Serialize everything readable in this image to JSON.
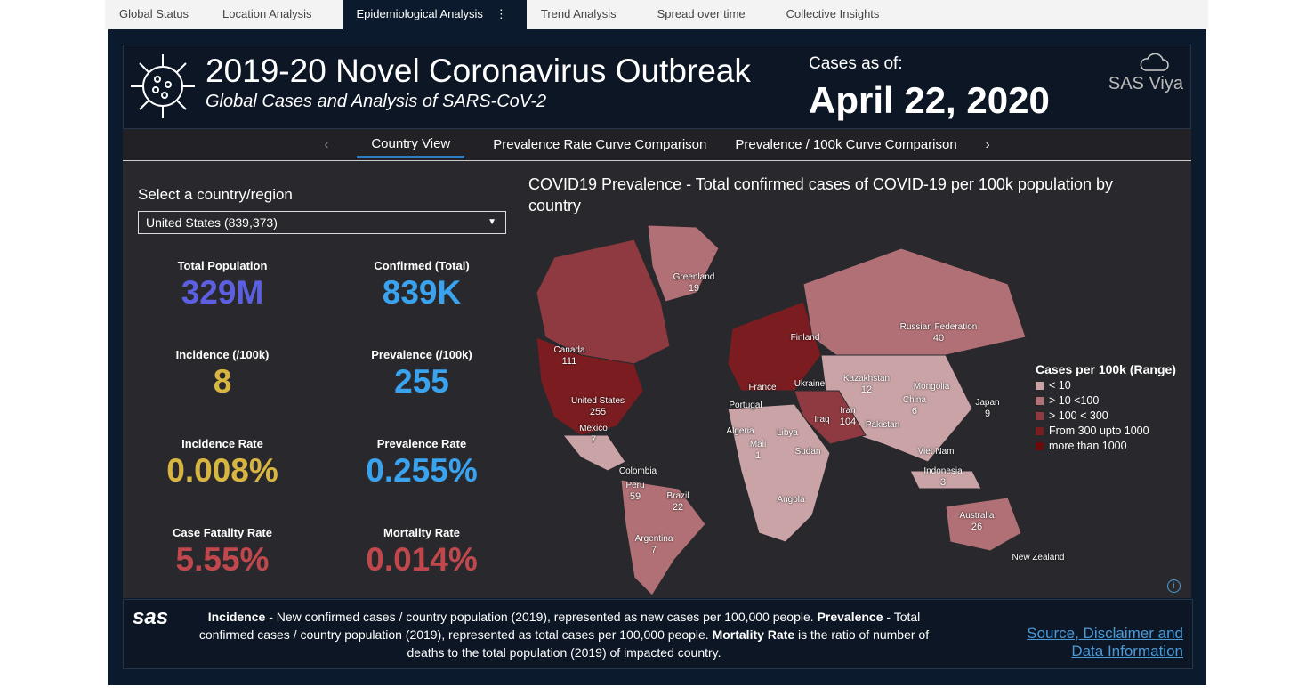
{
  "tabs": [
    "Global Status",
    "Location Analysis",
    "Epidemiological Analysis",
    "Trend Analysis",
    "Spread over time",
    "Collective Insights"
  ],
  "header": {
    "title": "2019-20 Novel Coronavirus Outbreak",
    "subtitle": "Global Cases and Analysis of SARS-CoV-2",
    "cases_as_of": "Cases as of:",
    "date": "April 22, 2020",
    "brand": "SAS Viya"
  },
  "subnav": {
    "prev": "‹",
    "items": [
      "Country View",
      "Prevalence Rate Curve Comparison",
      "Prevalence / 100k Curve Comparison"
    ],
    "next": "›"
  },
  "selector": {
    "label": "Select a country/region",
    "value": "United States (839,373)"
  },
  "kpis": [
    {
      "label": "Total Population",
      "value": "329M",
      "color": "#5b5fe0"
    },
    {
      "label": "Confirmed (Total)",
      "value": "839K",
      "color": "#3aa3f0"
    },
    {
      "label": "Incidence  (/100k)",
      "value": "8",
      "color": "#d8b540"
    },
    {
      "label": "Prevalence  (/100k)",
      "value": "255",
      "color": "#3aa3f0"
    },
    {
      "label": "Incidence Rate",
      "value": "0.008%",
      "color": "#d8b540"
    },
    {
      "label": "Prevalence Rate",
      "value": "0.255%",
      "color": "#3aa3f0"
    },
    {
      "label": "Case Fatality Rate",
      "value": "5.55%",
      "color": "#c0484d"
    },
    {
      "label": "Mortality Rate",
      "value": "0.014%",
      "color": "#c0484d"
    }
  ],
  "map": {
    "title": "COVID19 Prevalence  - Total confirmed cases of COVID-19 per 100k population by country",
    "labels": [
      [
        "Greenland",
        "19"
      ],
      [
        "Canada",
        "111"
      ],
      [
        "United States",
        "255"
      ],
      [
        "Mexico",
        "7"
      ],
      [
        "Finland",
        ""
      ],
      [
        "France",
        ""
      ],
      [
        "Ukraine",
        ""
      ],
      [
        "Portugal",
        ""
      ],
      [
        "Kazakhstan",
        "12"
      ],
      [
        "Russian Federation",
        "40"
      ],
      [
        "Mongolia",
        ""
      ],
      [
        "China",
        "6"
      ],
      [
        "Japan",
        "9"
      ],
      [
        "Iran",
        "104"
      ],
      [
        "Iraq",
        ""
      ],
      [
        "Pakistan",
        ""
      ],
      [
        "Algeria",
        ""
      ],
      [
        "Libya",
        ""
      ],
      [
        "Mali",
        "1"
      ],
      [
        "Sudan",
        ""
      ],
      [
        "Angola",
        ""
      ],
      [
        "Viet Nam",
        ""
      ],
      [
        "Indonesia",
        "3"
      ],
      [
        "Colombia",
        ""
      ],
      [
        "Peru",
        "59"
      ],
      [
        "Brazil",
        "22"
      ],
      [
        "Argentina",
        "7"
      ],
      [
        "Australia",
        "26"
      ],
      [
        "New Zealand",
        ""
      ]
    ],
    "legend": {
      "title": "Cases per 100k (Range)",
      "items": [
        {
          "label": "< 10",
          "color": "#c9a3a6"
        },
        {
          "label": "> 10 <100",
          "color": "#b07075"
        },
        {
          "label": "> 100 < 300",
          "color": "#8e3a40"
        },
        {
          "label": "From 300  upto 1000",
          "color": "#7a1c20"
        },
        {
          "label": "more than 1000",
          "color": "#6a0a0c"
        }
      ]
    }
  },
  "footer": {
    "logo": "sas",
    "b1": "Incidence",
    "t1": " - New confirmed cases / country population (2019), represented as new cases per 100,000 people. ",
    "b2": "Prevalence",
    "t2": " - Total confirmed cases / country population (2019), represented as total cases per 100,000 people.  ",
    "b3": "Mortality Rate",
    "t3": " is the ratio of number of deaths to the total population (2019) of impacted country.",
    "link": "Source, Disclaimer and Data Information"
  }
}
